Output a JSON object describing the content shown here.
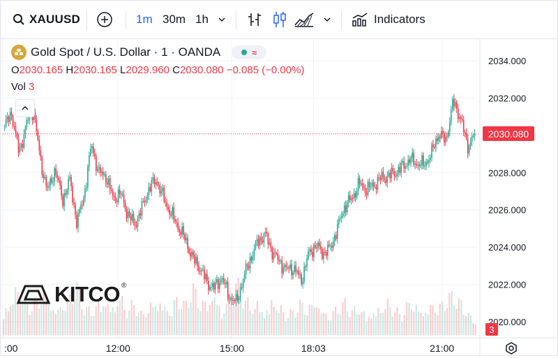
{
  "toolbar": {
    "symbol": "XAUUSD",
    "timeframes": [
      "1m",
      "30m",
      "1h"
    ],
    "active_timeframe": "1m",
    "indicators_label": "Indicators"
  },
  "legend": {
    "title": "Gold Spot / U.S. Dollar · 1 · OANDA",
    "o_label": "O",
    "o_value": "2030.165",
    "h_label": "H",
    "h_value": "2030.165",
    "l_label": "L",
    "l_value": "2029.960",
    "c_label": "C",
    "c_value": "2030.080",
    "change": "−0.085 (−0.00%)",
    "vol_label": "Vol",
    "vol_value": "3"
  },
  "watermark": {
    "brand": "KITCO"
  },
  "colors": {
    "up": "#22ab94",
    "down": "#f23645",
    "grid": "#f0f3fa",
    "text": "#131722"
  },
  "chart_data": {
    "type": "candlestick",
    "symbol": "XAUUSD",
    "ylim": [
      2019.5,
      2035.0
    ],
    "y_ticks": [
      {
        "value": 2034,
        "label": "2034.000"
      },
      {
        "value": 2032,
        "label": "2032.000"
      },
      {
        "value": 2028,
        "label": "2028.000"
      },
      {
        "value": 2026,
        "label": "2026.000"
      },
      {
        "value": 2024,
        "label": "2024.000"
      },
      {
        "value": 2022,
        "label": "2022.000"
      },
      {
        "value": 2020,
        "label": "2020.000"
      }
    ],
    "x_ticks": [
      {
        "frac": 0.0,
        "label": ":00"
      },
      {
        "frac": 0.243,
        "label": "12:00"
      },
      {
        "frac": 0.483,
        "label": "15:00"
      },
      {
        "frac": 0.655,
        "label": "18:03"
      },
      {
        "frac": 0.926,
        "label": "21:00"
      }
    ],
    "last_price": 2030.08,
    "last_price_label": "2030.080",
    "last_volume_label": "3",
    "price_path": [
      2030.5,
      2031.2,
      2029.0,
      2030.6,
      2031.4,
      2028.5,
      2027.0,
      2028.2,
      2026.5,
      2027.6,
      2025.3,
      2026.8,
      2029.5,
      2028.0,
      2027.8,
      2026.6,
      2026.9,
      2025.8,
      2025.2,
      2026.1,
      2027.2,
      2027.6,
      2026.6,
      2025.8,
      2025.1,
      2024.4,
      2023.4,
      2022.9,
      2022.1,
      2021.8,
      2022.4,
      2021.4,
      2021.0,
      2022.3,
      2023.4,
      2024.3,
      2024.7,
      2023.8,
      2023.2,
      2022.8,
      2022.9,
      2022.2,
      2023.6,
      2024.1,
      2023.7,
      2023.9,
      2025.0,
      2026.2,
      2026.6,
      2027.4,
      2027.1,
      2027.3,
      2027.7,
      2027.8,
      2028.0,
      2028.3,
      2028.7,
      2028.5,
      2028.4,
      2029.0,
      2030.1,
      2029.7,
      2031.8,
      2031.0,
      2029.4,
      2030.08
    ],
    "volumes": [
      6,
      9,
      12,
      8,
      7,
      10,
      11,
      6,
      8,
      9,
      13,
      7,
      6,
      8,
      9,
      7,
      10,
      6,
      8,
      5,
      7,
      9,
      8,
      6,
      10,
      7,
      12,
      9,
      8,
      11,
      6,
      9,
      13,
      10,
      7,
      8,
      6,
      9,
      7,
      5,
      6,
      8,
      7,
      9,
      6,
      5,
      7,
      8,
      6,
      7,
      5,
      6,
      7,
      8,
      6,
      5,
      9,
      7,
      6,
      8,
      7,
      9,
      10,
      8,
      6,
      3
    ],
    "volume_max": 16
  }
}
